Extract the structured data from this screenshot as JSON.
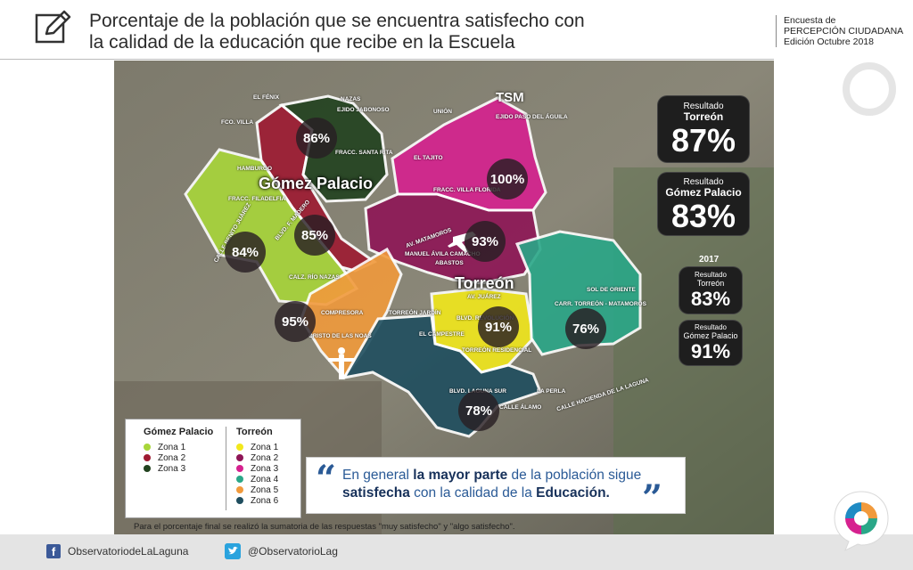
{
  "header": {
    "title_line1": "Porcentaje de la población que se encuentra satisfecho con",
    "title_line2": "la calidad de la educación que recibe en la Escuela",
    "survey_line1": "Encuesta de",
    "survey_line2": "PERCEPCIÓN CIUDADANA",
    "survey_line3": "Edición Octubre 2018"
  },
  "map": {
    "cities": {
      "gomez": "Gómez Palacio",
      "torreon": "Torreón",
      "tsm": "TSM"
    },
    "labels": [
      "EL FÉNIX",
      "FCO. VILLA",
      "NAZAS",
      "EJIDO JABONOSO",
      "FRACC. SANTA RITA",
      "HAMBURGO",
      "FRACC. FILADELFIA",
      "CALLE BENITO JUÁREZ",
      "BLVD. F. MADERO",
      "CALZ. RÍO NAZAS",
      "UNIÓN",
      "EJIDO PASO DEL ÁGUILA",
      "EL TAJITO",
      "FRACC. VILLA FLORIDA",
      "AV. MATAMOROS",
      "MANUEL ÁVILA CAMACHO",
      "ABASTOS",
      "AV. JUÁREZ",
      "BLVD. REVOLUCIÓN",
      "SOL DE ORIENTE",
      "CARR. TORREÓN - MATAMOROS",
      "TORREÓN JARDÍN",
      "COMPRESORA",
      "CRISTO DE LAS NOAS",
      "EL CAMPESTRE",
      "TORREÓN RESIDENCIAL",
      "LA PERLA",
      "BLVD. LAGUNA SUR",
      "CALLE ÁLAMO",
      "CALLE HACIENDA DE LA LAGUNA"
    ],
    "percentages": {
      "gp_zona3": "86%",
      "gp_zona2": "85%",
      "gp_zona1": "84%",
      "t_zona3": "100%",
      "t_zona2": "93%",
      "t_zona1": "91%",
      "t_zona4": "76%",
      "t_zona5": "95%",
      "t_zona6": "78%"
    }
  },
  "results": {
    "torreon": {
      "label1": "Resultado",
      "label2": "Torreón",
      "value": "87%"
    },
    "gomez": {
      "label1": "Resultado",
      "label2": "Gómez Palacio",
      "value": "83%"
    },
    "year": "2017",
    "torreon_2017": {
      "label1": "Resultado",
      "label2": "Torreón",
      "value": "83%"
    },
    "gomez_2017": {
      "label1": "Resultado",
      "label2": "Gómez Palacio",
      "value": "91%"
    }
  },
  "legend": {
    "gomez_title": "Gómez Palacio",
    "gomez_items": [
      {
        "label": "Zona 1",
        "color": "#a8d63a"
      },
      {
        "label": "Zona 2",
        "color": "#9e1b32"
      },
      {
        "label": "Zona 3",
        "color": "#22421f"
      }
    ],
    "torreon_title": "Torreón",
    "torreon_items": [
      {
        "label": "Zona 1",
        "color": "#f2e81c"
      },
      {
        "label": "Zona 2",
        "color": "#8e1656"
      },
      {
        "label": "Zona 3",
        "color": "#d6218f"
      },
      {
        "label": "Zona 4",
        "color": "#2aa788"
      },
      {
        "label": "Zona 5",
        "color": "#f19a3c"
      },
      {
        "label": "Zona 6",
        "color": "#1f4e5f"
      }
    ]
  },
  "quote": {
    "part1": "En general ",
    "bold1": "la mayor parte",
    "part2": " de la población sigue",
    "bold2": "satisfecha",
    "part3": " con la calidad de la ",
    "bold3": "Educación."
  },
  "footnote": "Para el porcentaje final se realizó la sumatoria de las respuestas \"muy satisfecho\" y \"algo satisfecho\".",
  "footer": {
    "facebook": "ObservatoriodeLaLaguna",
    "twitter": "@ObservatorioLag"
  }
}
